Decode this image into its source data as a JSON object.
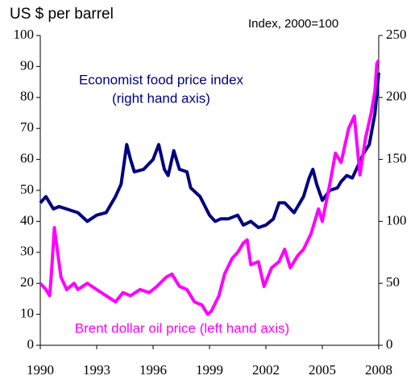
{
  "chart_data": {
    "type": "line",
    "y_label": "US $ per barrel",
    "y2_label": "Index, 2000=100",
    "annotations": [
      "(right hand axis)"
    ],
    "xlim": [
      1990,
      2008
    ],
    "xticks": [
      1990,
      1993,
      1996,
      1999,
      2002,
      2005,
      2008
    ],
    "ylim": [
      0,
      100
    ],
    "yticks": [
      0,
      10,
      20,
      30,
      40,
      50,
      60,
      70,
      80,
      90,
      100
    ],
    "y2lim": [
      0,
      250
    ],
    "y2ticks": [
      0,
      50,
      100,
      150,
      200,
      250
    ],
    "grid": false,
    "series": [
      {
        "name": "Economist food price index",
        "color": "#000080",
        "axis": "y2",
        "x": [
          1990,
          1990.3,
          1990.7,
          1991,
          1992,
          1992.5,
          1993,
          1993.5,
          1994,
          1994.3,
          1994.6,
          1994.8,
          1995,
          1995.5,
          1996,
          1996.3,
          1996.6,
          1996.8,
          1997.1,
          1997.4,
          1997.8,
          1998,
          1998.5,
          1999,
          1999.3,
          1999.6,
          2000,
          2000.5,
          2000.8,
          2001.2,
          2001.6,
          2002,
          2002.4,
          2002.7,
          2003,
          2003.5,
          2004,
          2004.3,
          2004.5,
          2004.7,
          2005,
          2005.4,
          2005.8,
          2006,
          2006.3,
          2006.6,
          2006.9,
          2007.2,
          2007.5,
          2007.8,
          2008
        ],
        "values": [
          115,
          120,
          110,
          112,
          107,
          100,
          105,
          107,
          120,
          130,
          162,
          150,
          140,
          142,
          150,
          162,
          142,
          137,
          157,
          142,
          140,
          127,
          120,
          105,
          100,
          102,
          102,
          105,
          97,
          100,
          95,
          97,
          102,
          115,
          115,
          107,
          120,
          135,
          142,
          130,
          117,
          125,
          127,
          132,
          137,
          135,
          145,
          155,
          162,
          187,
          220
        ]
      },
      {
        "name": "Brent dollar oil price (left hand axis)",
        "color": "#ff00ff",
        "axis": "y",
        "x": [
          1990,
          1990.3,
          1990.5,
          1990.6,
          1990.75,
          1990.9,
          1991.1,
          1991.4,
          1991.8,
          1992,
          1992.5,
          1993,
          1993.5,
          1994,
          1994.4,
          1994.8,
          1995.3,
          1995.8,
          1996.2,
          1996.7,
          1997,
          1997.4,
          1997.8,
          1998.2,
          1998.6,
          1998.9,
          1999.1,
          1999.5,
          1999.8,
          2000.2,
          2000.5,
          2000.8,
          2001,
          2001.2,
          2001.6,
          2001.9,
          2002.3,
          2002.7,
          2003,
          2003.3,
          2003.7,
          2004,
          2004.4,
          2004.8,
          2005,
          2005.4,
          2005.7,
          2006,
          2006.4,
          2006.7,
          2007,
          2007.3,
          2007.6,
          2007.8,
          2007.9,
          2008
        ],
        "values": [
          20,
          18,
          16,
          24,
          38,
          31,
          22,
          18,
          20,
          18,
          20,
          18,
          16,
          14,
          17,
          16,
          18,
          17,
          19,
          22,
          23,
          19,
          18,
          14,
          13,
          10,
          11,
          16,
          23,
          28,
          30,
          33,
          34,
          26,
          27,
          19,
          25,
          27,
          31,
          25,
          29,
          31,
          36,
          44,
          40,
          52,
          62,
          59,
          70,
          74,
          55,
          67,
          75,
          82,
          91,
          92
        ]
      }
    ]
  }
}
